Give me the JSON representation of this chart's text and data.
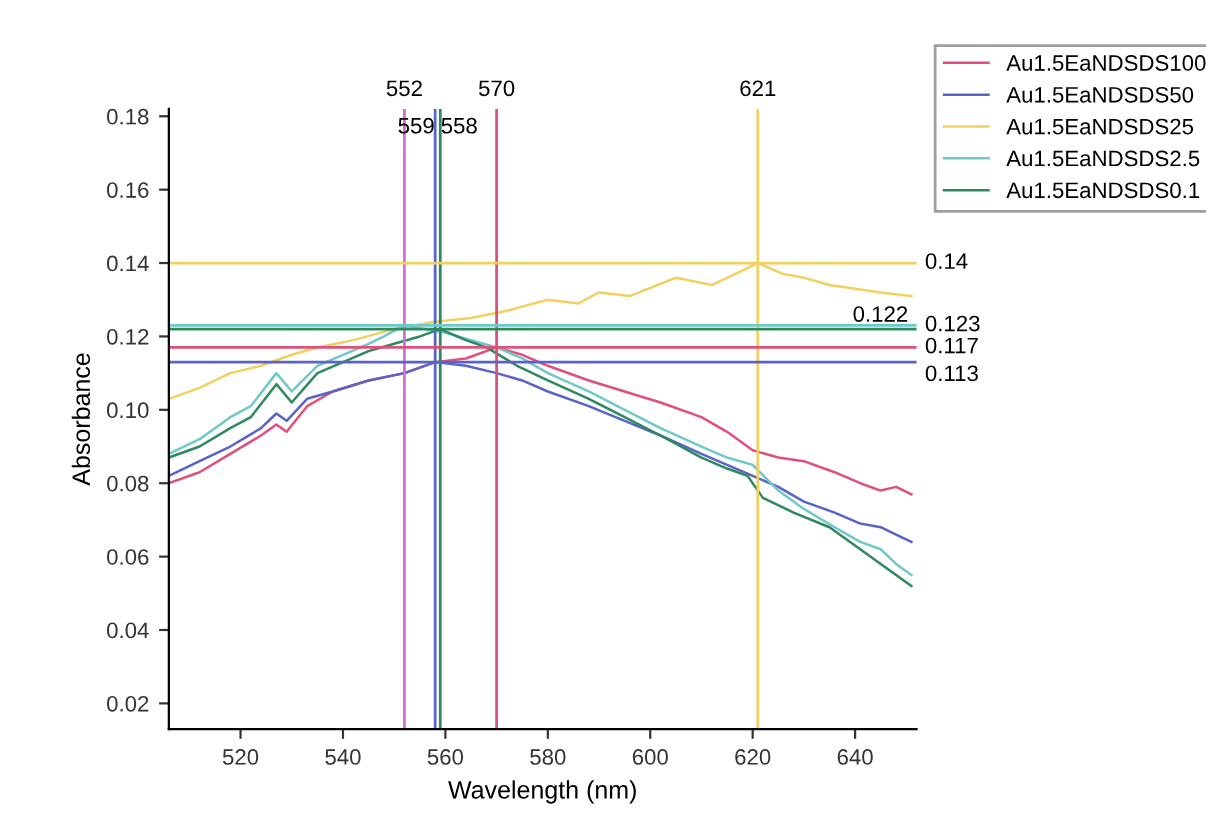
{
  "chart_data": {
    "type": "line",
    "xlabel": "Wavelength (nm)",
    "ylabel": "Absorbance",
    "xlim": [
      506,
      652
    ],
    "ylim": [
      0.013,
      0.182
    ],
    "xticks": [
      520,
      540,
      560,
      580,
      600,
      620,
      640
    ],
    "yticks": [
      {
        "value": 0.02,
        "label": "0.02"
      },
      {
        "value": 0.04,
        "label": "0.04"
      },
      {
        "value": 0.06,
        "label": "0.06"
      },
      {
        "value": 0.08,
        "label": "0.08"
      },
      {
        "value": 0.1,
        "label": "0.10"
      },
      {
        "value": 0.12,
        "label": "0.12"
      },
      {
        "value": 0.14,
        "label": "0.14"
      },
      {
        "value": 0.16,
        "label": "0.16"
      },
      {
        "value": 0.18,
        "label": "0.18"
      }
    ],
    "grid": false,
    "legend": "top right",
    "marker": "none",
    "line_style": "solid",
    "series": [
      {
        "name": "Au1.5EaNDSDS100",
        "color": "#e0507a",
        "x": [
          506,
          512,
          518,
          524,
          527,
          529,
          533,
          538,
          545,
          552,
          558,
          564,
          570,
          575,
          580,
          588,
          595,
          602,
          610,
          615,
          620,
          625,
          630,
          636,
          641,
          645,
          648,
          651
        ],
        "values": [
          0.08,
          0.083,
          0.088,
          0.093,
          0.096,
          0.094,
          0.101,
          0.105,
          0.108,
          0.11,
          0.113,
          0.114,
          0.117,
          0.115,
          0.112,
          0.108,
          0.105,
          0.102,
          0.098,
          0.094,
          0.089,
          0.087,
          0.086,
          0.083,
          0.08,
          0.078,
          0.079,
          0.077
        ]
      },
      {
        "name": "Au1.5EaNDSDS50",
        "color": "#5a64c8",
        "x": [
          506,
          512,
          518,
          524,
          527,
          529,
          533,
          538,
          545,
          552,
          558,
          564,
          570,
          575,
          580,
          588,
          595,
          602,
          610,
          615,
          620,
          625,
          630,
          636,
          641,
          645,
          648,
          651
        ],
        "values": [
          0.082,
          0.086,
          0.09,
          0.095,
          0.099,
          0.097,
          0.103,
          0.105,
          0.108,
          0.11,
          0.113,
          0.112,
          0.11,
          0.108,
          0.105,
          0.101,
          0.097,
          0.093,
          0.088,
          0.085,
          0.082,
          0.079,
          0.075,
          0.072,
          0.069,
          0.068,
          0.066,
          0.064
        ]
      },
      {
        "name": "Au1.5EaNDSDS25",
        "color": "#f2d060",
        "x": [
          506,
          512,
          518,
          524,
          530,
          535,
          542,
          550,
          558,
          565,
          572,
          580,
          586,
          590,
          596,
          605,
          612,
          621,
          626,
          630,
          635,
          640,
          645,
          651
        ],
        "values": [
          0.103,
          0.106,
          0.11,
          0.112,
          0.115,
          0.117,
          0.119,
          0.122,
          0.124,
          0.125,
          0.127,
          0.13,
          0.129,
          0.132,
          0.131,
          0.136,
          0.134,
          0.14,
          0.137,
          0.136,
          0.134,
          0.133,
          0.132,
          0.131
        ]
      },
      {
        "name": "Au1.5EaNDSDS2.5",
        "color": "#70c8c8",
        "x": [
          506,
          512,
          518,
          522,
          527,
          530,
          535,
          540,
          545,
          548,
          552,
          556,
          560,
          565,
          570,
          575,
          580,
          588,
          595,
          602,
          610,
          615,
          620,
          625,
          630,
          636,
          641,
          645,
          648,
          651
        ],
        "values": [
          0.088,
          0.092,
          0.098,
          0.101,
          0.11,
          0.105,
          0.112,
          0.115,
          0.118,
          0.12,
          0.123,
          0.122,
          0.121,
          0.119,
          0.117,
          0.114,
          0.11,
          0.105,
          0.1,
          0.095,
          0.09,
          0.087,
          0.085,
          0.078,
          0.073,
          0.068,
          0.064,
          0.062,
          0.058,
          0.055
        ]
      },
      {
        "name": "Au1.5EaNDSDS0.1",
        "color": "#2e8a5e",
        "x": [
          506,
          512,
          518,
          522,
          527,
          530,
          535,
          540,
          545,
          550,
          555,
          559,
          564,
          568,
          574,
          580,
          588,
          595,
          602,
          610,
          615,
          619,
          622,
          628,
          635,
          641,
          645,
          648,
          651
        ],
        "values": [
          0.087,
          0.09,
          0.095,
          0.098,
          0.107,
          0.102,
          0.11,
          0.113,
          0.116,
          0.118,
          0.12,
          0.122,
          0.119,
          0.117,
          0.112,
          0.108,
          0.103,
          0.098,
          0.093,
          0.087,
          0.084,
          0.082,
          0.076,
          0.072,
          0.068,
          0.062,
          0.058,
          0.055,
          0.052
        ]
      }
    ],
    "ref_lines": [
      {
        "axis": "x",
        "value": 552,
        "label": "552",
        "color": "#d070d0"
      },
      {
        "axis": "x",
        "value": 558,
        "label": "558",
        "color": "#5a64c8"
      },
      {
        "axis": "x",
        "value": 559,
        "label": "559",
        "color": "#2e8a5e"
      },
      {
        "axis": "x",
        "value": 570,
        "label": "570",
        "color": "#e0507a"
      },
      {
        "axis": "x",
        "value": 621,
        "label": "621",
        "color": "#f2d060"
      },
      {
        "axis": "y",
        "value": 0.14,
        "label": "0.14",
        "color": "#f2d060"
      },
      {
        "axis": "y",
        "value": 0.123,
        "label": "0.123",
        "color": "#70c8c8"
      },
      {
        "axis": "y",
        "value": 0.122,
        "label": "0.122",
        "color": "#2e8a5e"
      },
      {
        "axis": "y",
        "value": 0.117,
        "label": "0.117",
        "color": "#e0507a"
      },
      {
        "axis": "y",
        "value": 0.113,
        "label": "0.113",
        "color": "#5a64c8"
      }
    ]
  }
}
